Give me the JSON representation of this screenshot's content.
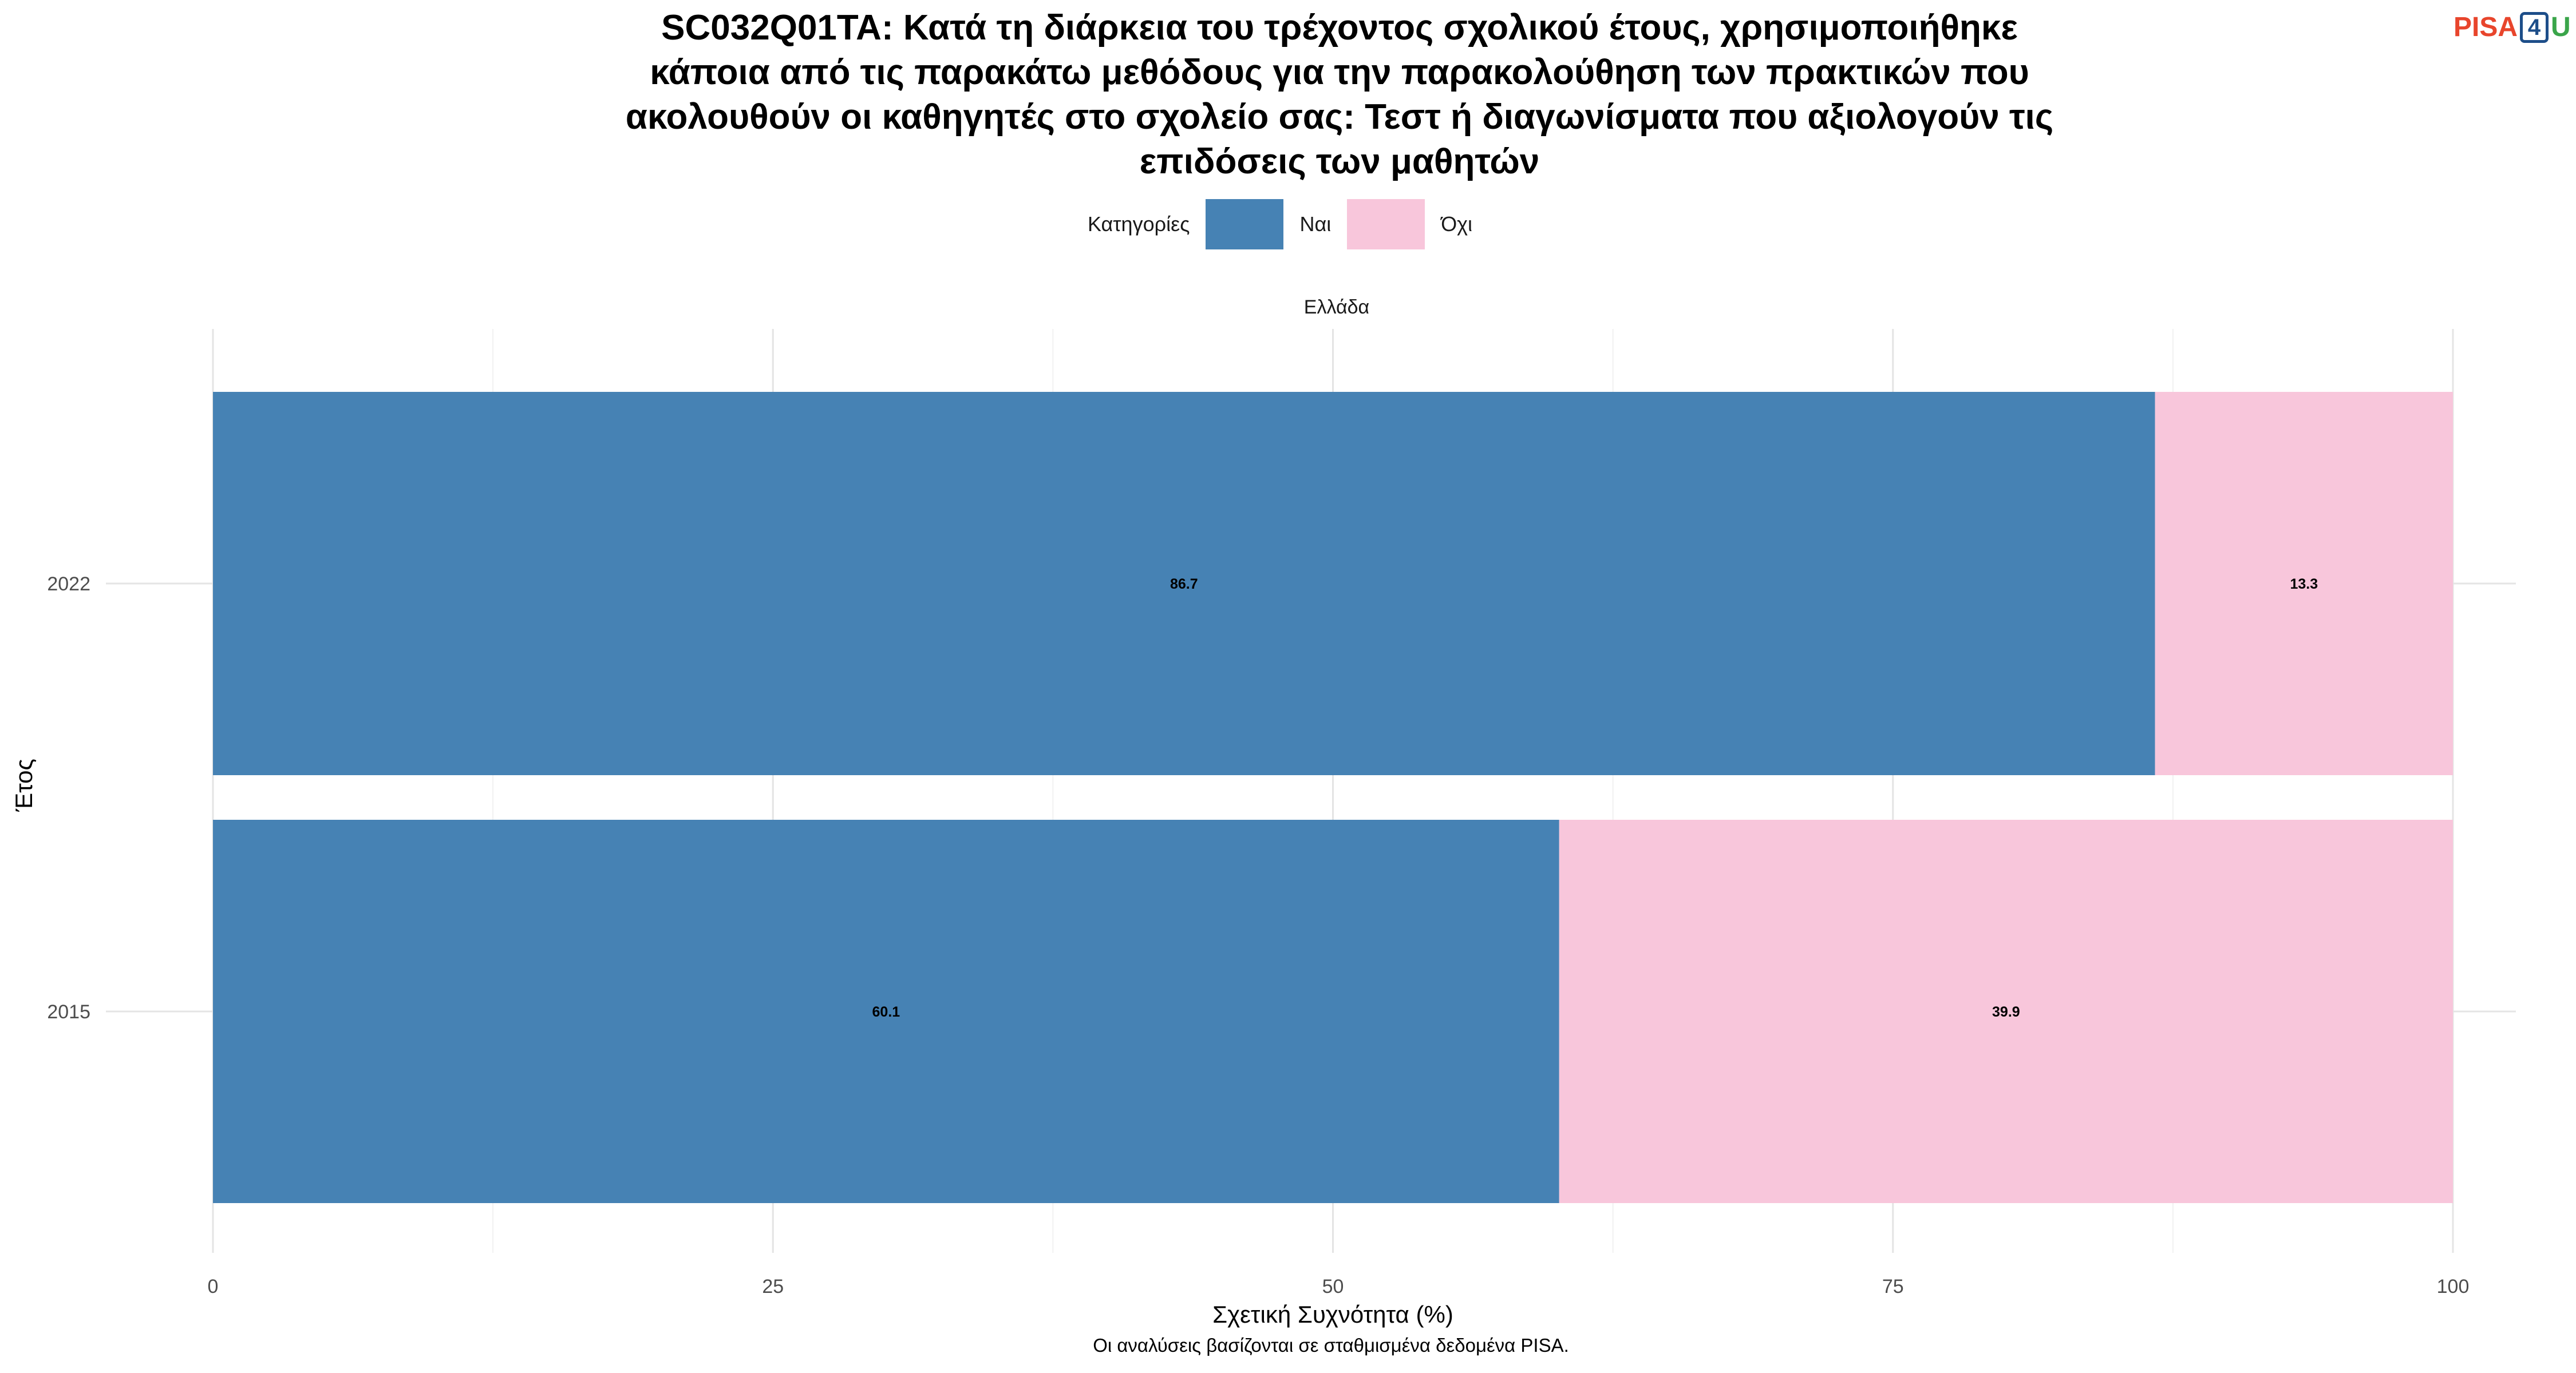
{
  "title_lines": [
    "SC032Q01TA: Κατά τη διάρκεια του τρέχοντος σχολικού έτους, χρησιμοποιήθηκε",
    "κάποια από τις παρακάτω μεθόδους για την παρακολούθηση των πρακτικών που",
    "ακολουθούν οι καθηγητές στο σχολείο σας: Τεστ ή διαγωνίσματα που αξιολογούν τις",
    "επιδόσεις των μαθητών"
  ],
  "logo": {
    "part1": "PISA",
    "part2": "4",
    "part3": "U"
  },
  "legend": {
    "title": "Κατηγορίες",
    "items": [
      {
        "label": "Ναι",
        "color": "#4682b4"
      },
      {
        "label": "Όχι",
        "color": "#f8c6db"
      }
    ]
  },
  "facet": "Ελλάδα",
  "caption": "Οι αναλύσεις βασίζονται σε σταθμισμένα δεδομένα PISA.",
  "chart_data": {
    "type": "bar",
    "orientation": "horizontal",
    "stacked": true,
    "categories": [
      "2022",
      "2015"
    ],
    "series": [
      {
        "name": "Ναι",
        "values": [
          86.7,
          60.1
        ],
        "labels": [
          "86.7",
          "60.1"
        ],
        "color": "#4682b4"
      },
      {
        "name": "Όχι",
        "values": [
          13.3,
          39.9
        ],
        "labels": [
          "13.3",
          "39.9"
        ],
        "color": "#f8c6db"
      }
    ],
    "xlabel": "Σχετική Συχνότητα (%)",
    "ylabel": "Έτος",
    "xlim": [
      0,
      100
    ],
    "xticks": [
      0,
      25,
      50,
      75,
      100
    ],
    "xtick_labels": [
      "0",
      "25",
      "50",
      "75",
      "100"
    ],
    "grid": true,
    "legend_position": "top"
  }
}
